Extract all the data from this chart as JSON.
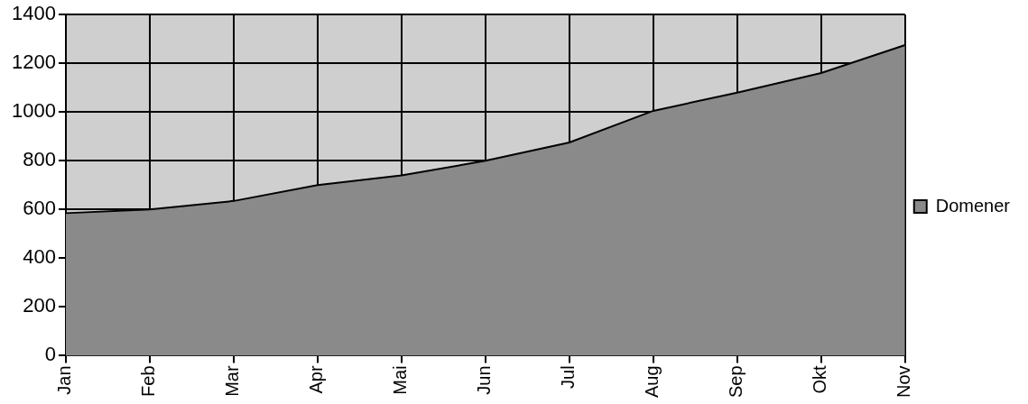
{
  "chart_data": {
    "type": "area",
    "categories": [
      "Jan",
      "Feb",
      "Mar",
      "Apr",
      "Mai",
      "Jun",
      "Jul",
      "Aug",
      "Sep",
      "Okt",
      "Nov"
    ],
    "series": [
      {
        "name": "Domener",
        "color": "#8a8a8a",
        "values": [
          585,
          600,
          635,
          700,
          740,
          800,
          875,
          1005,
          1080,
          1160,
          1275
        ]
      }
    ],
    "ylim": [
      0,
      1400
    ],
    "yticks": [
      0,
      200,
      400,
      600,
      800,
      1000,
      1200,
      1400
    ],
    "grid": true,
    "legend": "right"
  }
}
